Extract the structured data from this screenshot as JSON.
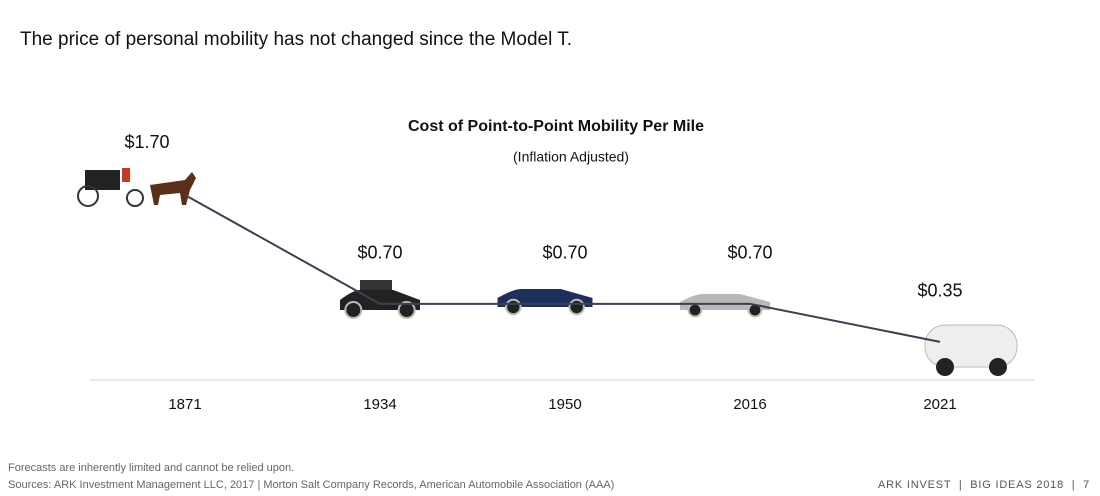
{
  "header": {
    "headline": "The price of personal mobility has not changed since the Model T."
  },
  "chart_data": {
    "type": "line",
    "title": "Cost of Point-to-Point Mobility Per Mile",
    "subtitle": "(Inflation Adjusted)",
    "categories": [
      "1871",
      "1934",
      "1950",
      "2016",
      "2021"
    ],
    "values": [
      1.7,
      0.7,
      0.7,
      0.7,
      0.35
    ],
    "value_labels": [
      "$1.70",
      "$0.70",
      "$0.70",
      "$0.70",
      "$0.35"
    ],
    "color": "#3a4250"
  },
  "footer": {
    "disclaimer": "Forecasts are inherently limited and cannot be relied upon.",
    "sources": "Sources: ARK Investment Management LLC, 2017 | Morton Salt Company Records, American Automobile Association (AAA)",
    "brand": "ARK INVEST  |  BIG IDEAS 2018  |  7"
  }
}
